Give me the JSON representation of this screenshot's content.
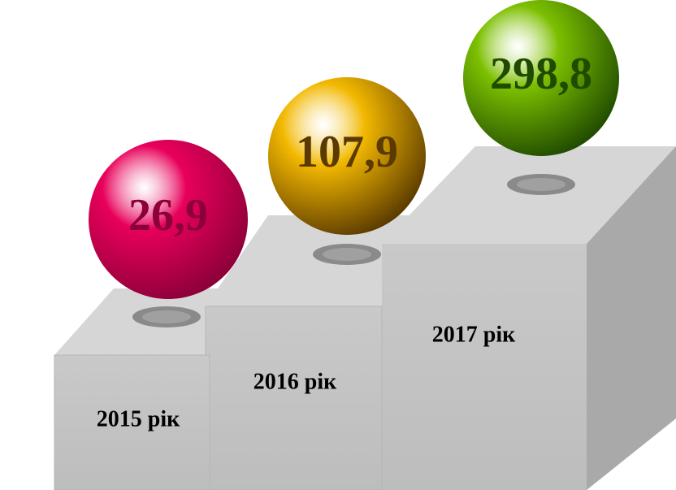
{
  "chart_data": {
    "type": "steps",
    "categories": [
      "2015 рік",
      "2016 рік",
      "2017 рік"
    ],
    "values": [
      26.9,
      107.9,
      298.8
    ],
    "value_labels": [
      "26,9",
      "107,9",
      "298,8"
    ],
    "colors": [
      "#e8005a",
      "#f2b800",
      "#7cbf00"
    ],
    "label_colors": [
      "#8b0038",
      "#5a3a00",
      "#1f4a00"
    ]
  }
}
